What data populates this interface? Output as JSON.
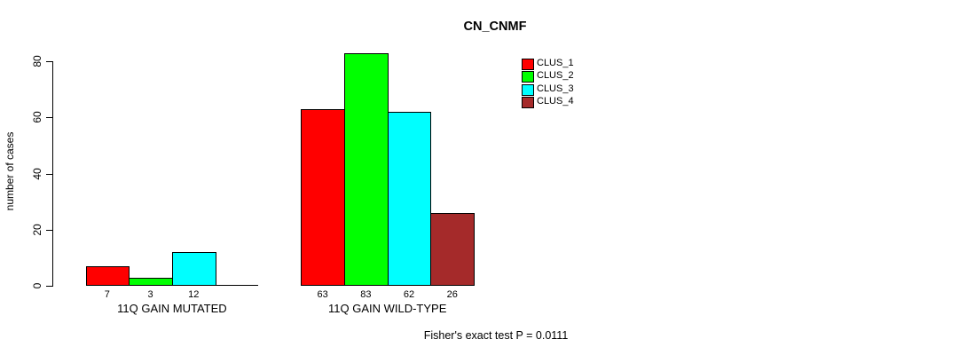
{
  "title": "CN_CNMF",
  "footer": "Fisher's exact test P = 0.0111",
  "legend": {
    "items": [
      {
        "label": "CLUS_1",
        "color": "#FF0000"
      },
      {
        "label": "CLUS_2",
        "color": "#00FF00"
      },
      {
        "label": "CLUS_3",
        "color": "#00FFFF"
      },
      {
        "label": "CLUS_4",
        "color": "#A52A2A"
      }
    ]
  },
  "chart_data": {
    "type": "bar",
    "title": "CN_CNMF",
    "xlabel": "",
    "ylabel": "number of cases",
    "ylim": [
      0,
      85
    ],
    "yticks": [
      0,
      20,
      40,
      60,
      80
    ],
    "grid": false,
    "legend_position": "top-right",
    "categories": [
      "11Q GAIN MUTATED",
      "11Q GAIN WILD-TYPE"
    ],
    "series": [
      {
        "name": "CLUS_1",
        "color": "#FF0000",
        "values": [
          7,
          63
        ]
      },
      {
        "name": "CLUS_2",
        "color": "#00FF00",
        "values": [
          3,
          83
        ]
      },
      {
        "name": "CLUS_3",
        "color": "#00FFFF",
        "values": [
          12,
          62
        ]
      },
      {
        "name": "CLUS_4",
        "color": "#A52A2A",
        "values": [
          0,
          26
        ]
      }
    ],
    "bar_value_labels": [
      [
        "7",
        "3",
        "12",
        ""
      ],
      [
        "63",
        "83",
        "62",
        "26"
      ]
    ],
    "annotation": "Fisher's exact test P = 0.0111"
  }
}
